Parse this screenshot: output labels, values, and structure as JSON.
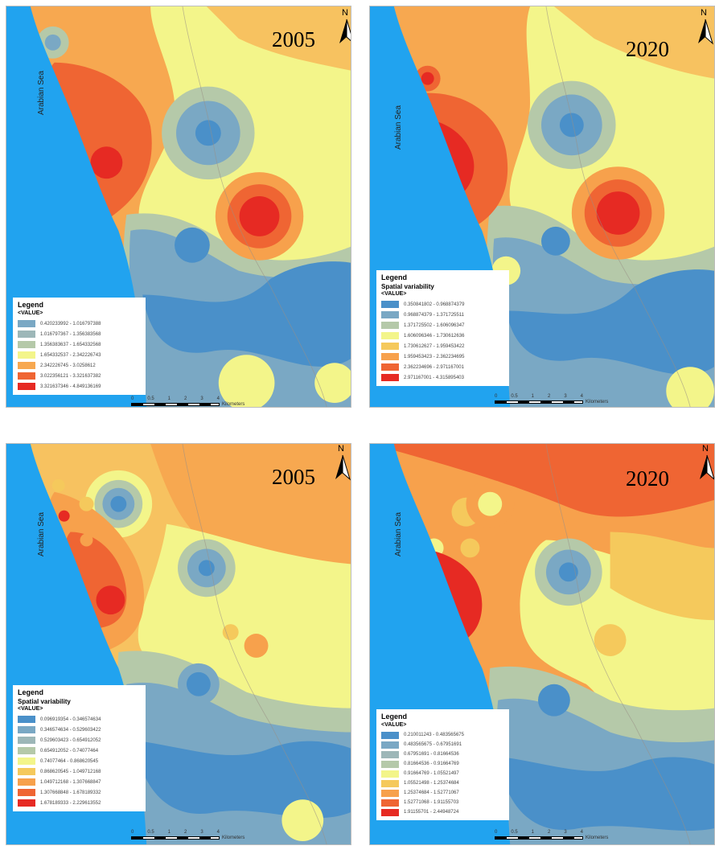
{
  "colors": {
    "sea": "#21a3ef",
    "c1": "#4a90c9",
    "c2": "#7aa8c4",
    "c3": "#b5c9a9",
    "c4": "#f3f58a",
    "c5": "#f5c95c",
    "c6": "#f7a14c",
    "c7": "#ef6533",
    "c8": "#e62a23"
  },
  "north_letter": "N",
  "sea_label": "Arabian Sea",
  "panels": [
    {
      "year": "2005",
      "legend": {
        "title": "Legend",
        "subtitle": "",
        "field": "<VALUE>",
        "items": [
          "0.420233992 - 1.016797388",
          "1.016797367 - 1.356383568",
          "1.356383637 - 1.654332568",
          "1.654332537 - 2.342226743",
          "2.342226745 - 3.0258612",
          "3.022356121 - 3.321637382",
          "3.321637346 - 4.849136169"
        ]
      },
      "scale": {
        "ticks": [
          "0",
          "0.5",
          "1",
          "2",
          "3",
          "4"
        ],
        "unit": "Kilometers"
      }
    },
    {
      "year": "2020",
      "legend": {
        "title": "Legend",
        "subtitle": "Spatial variability",
        "field": "<VALUE>",
        "items": [
          "0.350841802 - 0.968874379",
          "0.968874379 - 1.371725511",
          "1.371725502 - 1.606096347",
          "1.606096346 - 1.730612636",
          "1.730612627 - 1.959453422",
          "1.959453423 - 2.362234695",
          "2.362234696 - 2.971167001",
          "2.971167001 - 4.315895403"
        ]
      },
      "scale": {
        "ticks": [
          "0",
          "0.5",
          "1",
          "2",
          "3",
          "4"
        ],
        "unit": "Kilometers"
      }
    },
    {
      "year": "2005",
      "legend": {
        "title": "Legend",
        "subtitle": "Spatial variability",
        "field": "<VALUE>",
        "items": [
          "0.096919354 - 0.346574634",
          "0.346574634 - 0.529603422",
          "0.529603423 - 0.654912052",
          "0.654912052 - 0.74077464",
          "0.74077464 - 0.868620545",
          "0.868620545 - 1.049712168",
          "1.049712168 - 1.307668847",
          "1.307668848 - 1.678189332",
          "1.678189333 - 2.229613552"
        ]
      },
      "scale": {
        "ticks": [
          "0",
          "0.5",
          "1",
          "2",
          "3",
          "4"
        ],
        "unit": "Kilometers"
      }
    },
    {
      "year": "2020",
      "legend": {
        "title": "Legend",
        "subtitle": "",
        "field": "<VALUE>",
        "items": [
          "0.210011243 - 0.483565675",
          "0.483565675 - 0.67951691",
          "0.67951691 - 0.81664536",
          "0.81664536 - 0.91664769",
          "0.91664769 - 1.05521497",
          "1.05521498 - 1.25374684",
          "1.25374684 - 1.52771067",
          "1.52771068 - 1.91155703",
          "1.91155701 - 2.44948724"
        ]
      },
      "scale": {
        "ticks": [
          "0",
          "0.5",
          "1",
          "2",
          "3",
          "4"
        ],
        "unit": "Kilometers"
      }
    }
  ]
}
